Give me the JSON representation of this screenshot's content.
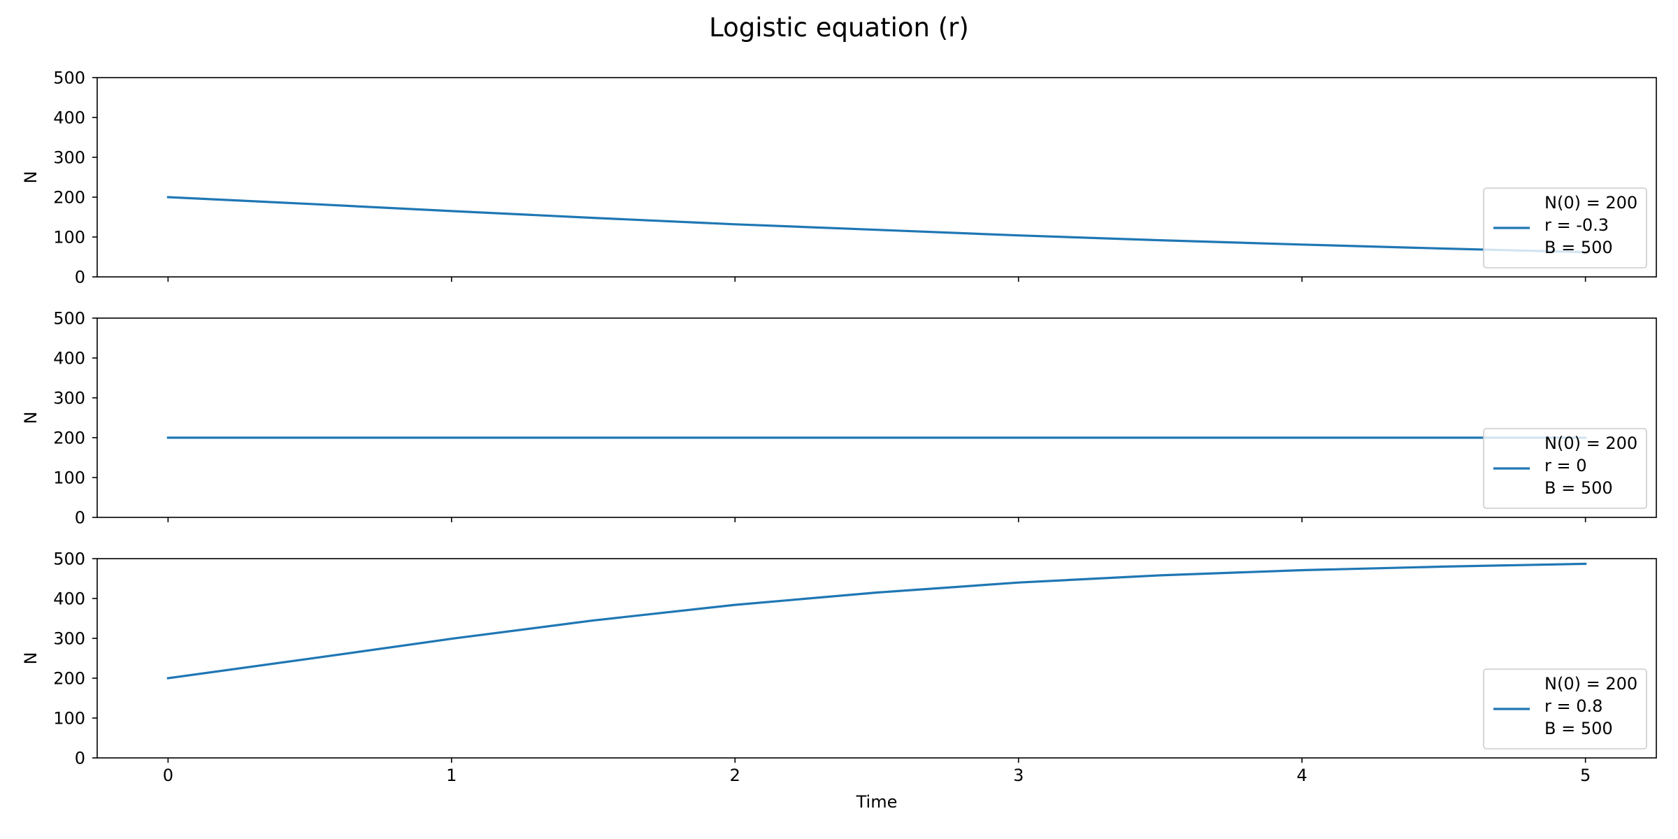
{
  "figure": {
    "title": "Logistic equation (r)"
  },
  "colors": {
    "series": "#1f77b4",
    "axis": "#000000",
    "legend_border": "#cccccc"
  },
  "chart_data": [
    {
      "type": "line",
      "xlabel": "",
      "ylabel": "N",
      "xlim": [
        -0.25,
        5.25
      ],
      "ylim": [
        0,
        500
      ],
      "xticks": [
        0,
        1,
        2,
        3,
        4,
        5
      ],
      "yticks": [
        0,
        100,
        200,
        300,
        400,
        500
      ],
      "show_xtick_labels": false,
      "grid": false,
      "legend_position": "lower right",
      "params": {
        "N0": 200,
        "r": -0.3,
        "B": 500
      },
      "legend_lines": [
        "N(0) = 200",
        "r = -0.3",
        "B = 500"
      ],
      "series": [
        {
          "x": [
            0,
            0.5,
            1,
            1.5,
            2,
            2.5,
            3,
            3.5,
            4,
            4.5,
            5
          ],
          "values": [
            200,
            183,
            165,
            148,
            132,
            118,
            104,
            92,
            81,
            71,
            62
          ]
        }
      ]
    },
    {
      "type": "line",
      "xlabel": "",
      "ylabel": "N",
      "xlim": [
        -0.25,
        5.25
      ],
      "ylim": [
        0,
        500
      ],
      "xticks": [
        0,
        1,
        2,
        3,
        4,
        5
      ],
      "yticks": [
        0,
        100,
        200,
        300,
        400,
        500
      ],
      "show_xtick_labels": false,
      "grid": false,
      "legend_position": "lower right",
      "params": {
        "N0": 200,
        "r": 0,
        "B": 500
      },
      "legend_lines": [
        "N(0) = 200",
        "r = 0",
        "B = 500"
      ],
      "series": [
        {
          "x": [
            0,
            0.5,
            1,
            1.5,
            2,
            2.5,
            3,
            3.5,
            4,
            4.5,
            5
          ],
          "values": [
            200,
            200,
            200,
            200,
            200,
            200,
            200,
            200,
            200,
            200,
            200
          ]
        }
      ]
    },
    {
      "type": "line",
      "xlabel": "Time",
      "ylabel": "N",
      "xlim": [
        -0.25,
        5.25
      ],
      "ylim": [
        0,
        500
      ],
      "xticks": [
        0,
        1,
        2,
        3,
        4,
        5
      ],
      "yticks": [
        0,
        100,
        200,
        300,
        400,
        500
      ],
      "show_xtick_labels": true,
      "grid": false,
      "legend_position": "lower right",
      "params": {
        "N0": 200,
        "r": 0.8,
        "B": 500
      },
      "legend_lines": [
        "N(0) = 200",
        "r = 0.8",
        "B = 500"
      ],
      "series": [
        {
          "x": [
            0,
            0.5,
            1,
            1.5,
            2,
            2.5,
            3,
            3.5,
            4,
            4.5,
            5
          ],
          "values": [
            200,
            249,
            299,
            345,
            384,
            415,
            440,
            458,
            471,
            480,
            487
          ]
        }
      ]
    }
  ]
}
